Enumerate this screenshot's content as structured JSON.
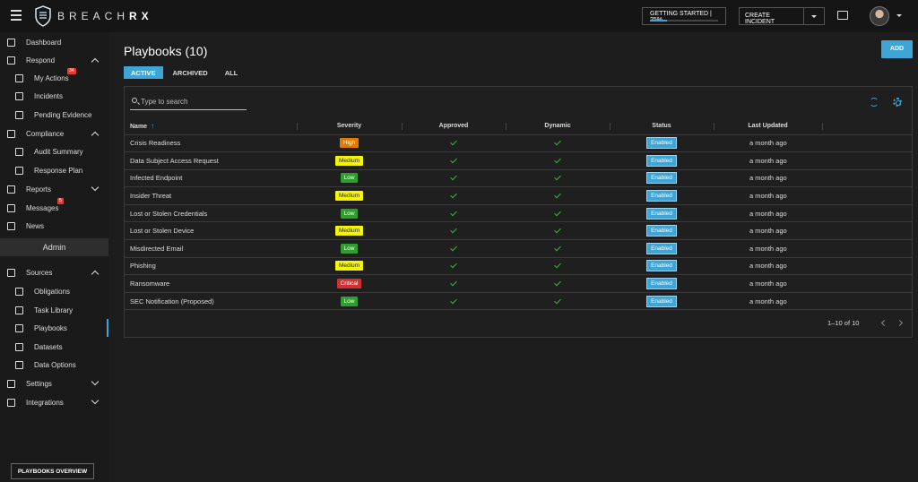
{
  "app": {
    "logo_text_light": "BREACH",
    "logo_text_bold": "RX",
    "getting_started_label": "GETTING STARTED | 25%",
    "getting_started_progress": 0.25,
    "create_incident_label": "CREATE INCIDENT"
  },
  "sidebar": {
    "items": [
      {
        "label": "Dashboard",
        "icon": "dashboard-icon"
      },
      {
        "label": "Respond",
        "icon": "chevrons-right-icon"
      },
      {
        "label": "My Actions",
        "icon": "list-icon",
        "badge": "34"
      },
      {
        "label": "Incidents",
        "icon": "document-icon"
      },
      {
        "label": "Pending Evidence",
        "icon": "inbox-icon"
      },
      {
        "label": "Compliance",
        "icon": "check-square-icon"
      },
      {
        "label": "Audit Summary",
        "icon": "folder-icon"
      },
      {
        "label": "Response Plan",
        "icon": "shield-icon"
      },
      {
        "label": "Reports",
        "icon": "report-icon"
      },
      {
        "label": "Messages",
        "icon": "mail-icon",
        "badge": "5"
      },
      {
        "label": "News",
        "icon": "newspaper-icon"
      }
    ],
    "admin_label": "Admin",
    "admin_items": [
      {
        "label": "Sources",
        "icon": "layers-icon"
      },
      {
        "label": "Obligations",
        "icon": "globe-icon"
      },
      {
        "label": "Task Library",
        "icon": "book-icon"
      },
      {
        "label": "Playbooks",
        "icon": "playbook-icon"
      },
      {
        "label": "Datasets",
        "icon": "dataset-icon"
      },
      {
        "label": "Data Options",
        "icon": "options-icon"
      },
      {
        "label": "Settings",
        "icon": "gear-icon"
      },
      {
        "label": "Integrations",
        "icon": "plug-icon"
      }
    ],
    "overview_button": "PLAYBOOKS OVERVIEW"
  },
  "main": {
    "title": "Playbooks (10)",
    "add_label": "ADD",
    "tabs": [
      "ACTIVE",
      "ARCHIVED",
      "ALL"
    ],
    "search_placeholder": "Type to search",
    "columns": [
      "Name",
      "Severity",
      "Approved",
      "Dynamic",
      "Status",
      "Last Updated"
    ],
    "rows": [
      {
        "name": "Crisis Readiness",
        "severity": "High",
        "status": "Enabled",
        "updated": "a month ago"
      },
      {
        "name": "Data Subject Access Request",
        "severity": "Medium",
        "status": "Enabled",
        "updated": "a month ago"
      },
      {
        "name": "Infected Endpoint",
        "severity": "Low",
        "status": "Enabled",
        "updated": "a month ago"
      },
      {
        "name": "Insider Threat",
        "severity": "Medium",
        "status": "Enabled",
        "updated": "a month ago"
      },
      {
        "name": "Lost or Stolen Credentials",
        "severity": "Low",
        "status": "Enabled",
        "updated": "a month ago"
      },
      {
        "name": "Lost or Stolen Device",
        "severity": "Medium",
        "status": "Enabled",
        "updated": "a month ago"
      },
      {
        "name": "Misdirected Email",
        "severity": "Low",
        "status": "Enabled",
        "updated": "a month ago"
      },
      {
        "name": "Phishing",
        "severity": "Medium",
        "status": "Enabled",
        "updated": "a month ago"
      },
      {
        "name": "Ransomware",
        "severity": "Critical",
        "status": "Enabled",
        "updated": "a month ago"
      },
      {
        "name": "SEC Notification (Proposed)",
        "severity": "Low",
        "status": "Enabled",
        "updated": "a month ago"
      }
    ],
    "pagination": "1–10 of 10"
  },
  "colors": {
    "accent": "#3fa5d6",
    "severity": {
      "High": {
        "bg": "#e07b00",
        "fg": "#ffffff"
      },
      "Medium": {
        "bg": "#f5f500",
        "fg": "#222222"
      },
      "Low": {
        "bg": "#2e9e2e",
        "fg": "#ffffff"
      },
      "Critical": {
        "bg": "#d32f2f",
        "fg": "#ffffff"
      }
    }
  }
}
